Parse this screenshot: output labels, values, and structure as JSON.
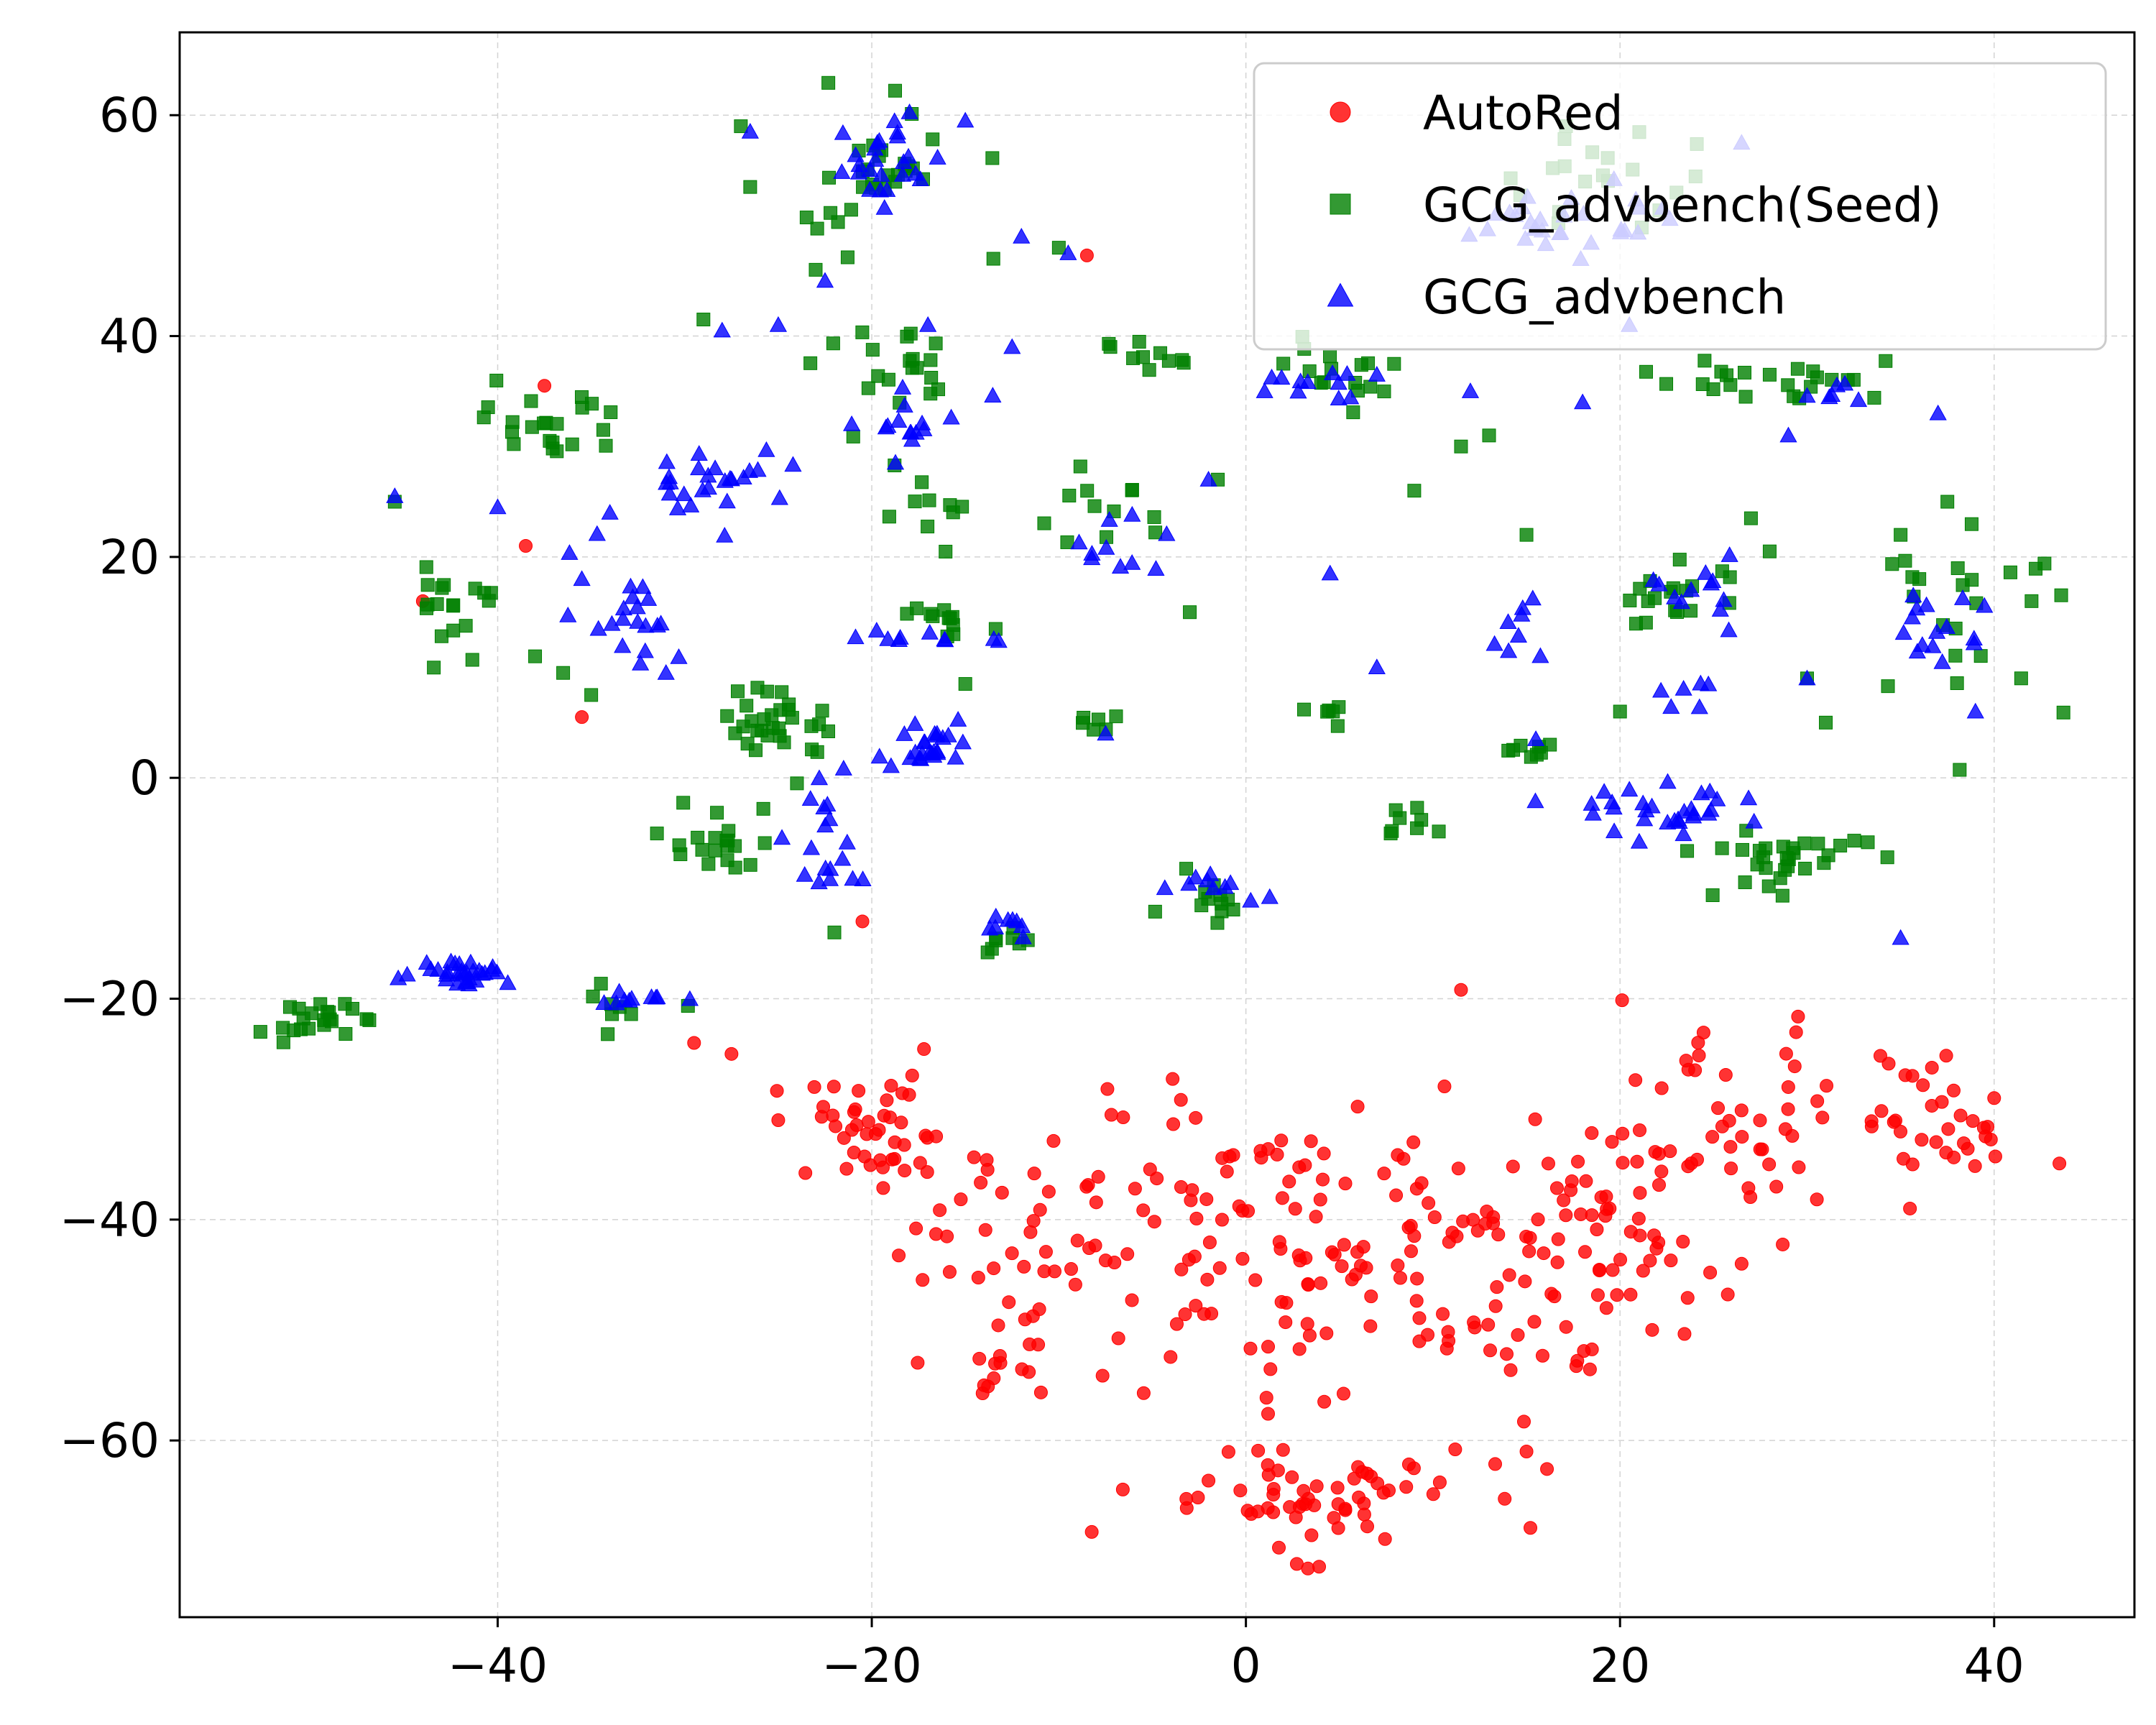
{
  "chart_data": {
    "type": "scatter",
    "title": "",
    "xlabel": "",
    "ylabel": "",
    "xlim": [
      -57,
      47.5
    ],
    "ylim": [
      -76,
      67.5
    ],
    "xticks": [
      -40,
      -20,
      0,
      20,
      40
    ],
    "yticks": [
      -60,
      -40,
      -20,
      0,
      20,
      40,
      60
    ],
    "grid": true,
    "legend_position": "upper-right",
    "series": [
      {
        "name": "AutoRed",
        "marker": "circle",
        "color": "#ff0000",
        "clusters": [
          {
            "cx": -20,
            "cy": -32,
            "sx": 2.8,
            "sy": 2.5,
            "n": 40
          },
          {
            "cx": -12,
            "cy": -43,
            "sx": 4,
            "sy": 6,
            "n": 45
          },
          {
            "cx": -3,
            "cy": -40,
            "sx": 4.5,
            "sy": 6,
            "n": 55
          },
          {
            "cx": 5,
            "cy": -42,
            "sx": 4,
            "sy": 7,
            "n": 55
          },
          {
            "cx": 13,
            "cy": -42,
            "sx": 3.5,
            "sy": 6,
            "n": 50
          },
          {
            "cx": 19,
            "cy": -44,
            "sx": 4,
            "sy": 6,
            "n": 55
          },
          {
            "cx": 25,
            "cy": -31,
            "sx": 4,
            "sy": 4,
            "n": 45
          },
          {
            "cx": 37,
            "cy": -31,
            "sx": 2.5,
            "sy": 3.5,
            "n": 35
          },
          {
            "cx": 3,
            "cy": -65,
            "sx": 4.5,
            "sy": 2.5,
            "n": 65
          },
          {
            "cx": -13,
            "cy": -54,
            "sx": 1.5,
            "sy": 1.5,
            "n": 10
          }
        ],
        "points": [
          {
            "x": -37.5,
            "y": 35.5
          },
          {
            "x": -38.5,
            "y": 21
          },
          {
            "x": -44,
            "y": 16
          },
          {
            "x": -35.5,
            "y": 5.5
          },
          {
            "x": -20.5,
            "y": -13
          },
          {
            "x": -8.5,
            "y": 47.3
          },
          {
            "x": 11.5,
            "y": -19.2
          },
          {
            "x": -29.5,
            "y": -24
          },
          {
            "x": -27.5,
            "y": -25
          },
          {
            "x": -25,
            "y": -31
          },
          {
            "x": 15,
            "y": -61
          },
          {
            "x": 35.5,
            "y": -39
          },
          {
            "x": 40,
            "y": -29
          },
          {
            "x": -14,
            "y": -55
          },
          {
            "x": 26.5,
            "y": -44
          }
        ]
      },
      {
        "name": "GCG_advbench(Seed)",
        "marker": "square",
        "color": "#008000",
        "clusters": [
          {
            "cx": -20,
            "cy": 55,
            "sx": 2.5,
            "sy": 3.5,
            "n": 30
          },
          {
            "cx": -50,
            "cy": -22,
            "sx": 1.2,
            "sy": 0.8,
            "n": 22
          },
          {
            "cx": -37,
            "cy": 32,
            "sx": 1.8,
            "sy": 1.8,
            "n": 22
          },
          {
            "cx": -42,
            "cy": 16,
            "sx": 1.2,
            "sy": 2,
            "n": 18
          },
          {
            "cx": -25,
            "cy": 5,
            "sx": 1.5,
            "sy": 1.5,
            "n": 30
          },
          {
            "cx": -28,
            "cy": -6,
            "sx": 1.5,
            "sy": 2.5,
            "n": 20
          },
          {
            "cx": -19,
            "cy": 36,
            "sx": 2,
            "sy": 2,
            "n": 20
          },
          {
            "cx": -17,
            "cy": 24,
            "sx": 1.2,
            "sy": 1.5,
            "n": 10
          },
          {
            "cx": -16,
            "cy": 14,
            "sx": 2,
            "sy": 1.2,
            "n": 12
          },
          {
            "cx": -8,
            "cy": 24,
            "sx": 1.5,
            "sy": 1.5,
            "n": 12
          },
          {
            "cx": -6,
            "cy": 38,
            "sx": 1.5,
            "sy": 0.8,
            "n": 10
          },
          {
            "cx": 5,
            "cy": 36,
            "sx": 2,
            "sy": 1.5,
            "n": 15
          },
          {
            "cx": 18,
            "cy": 55,
            "sx": 3,
            "sy": 2,
            "n": 20
          },
          {
            "cx": 23,
            "cy": 16,
            "sx": 1.8,
            "sy": 1.8,
            "n": 18
          },
          {
            "cx": 29,
            "cy": -7,
            "sx": 2.5,
            "sy": 1.5,
            "n": 30
          },
          {
            "cx": 39,
            "cy": 14,
            "sx": 2.5,
            "sy": 4,
            "n": 22
          },
          {
            "cx": 31,
            "cy": 36,
            "sx": 2,
            "sy": 1,
            "n": 12
          },
          {
            "cx": 25,
            "cy": 36,
            "sx": 1.5,
            "sy": 1,
            "n": 10
          },
          {
            "cx": -33,
            "cy": -21,
            "sx": 1.5,
            "sy": 1.2,
            "n": 8
          },
          {
            "cx": -13,
            "cy": -15,
            "sx": 1,
            "sy": 0.8,
            "n": 8
          },
          {
            "cx": -2,
            "cy": -10,
            "sx": 1.2,
            "sy": 1.2,
            "n": 12
          },
          {
            "cx": 9,
            "cy": -4,
            "sx": 1.2,
            "sy": 1,
            "n": 8
          },
          {
            "cx": 15,
            "cy": 2,
            "sx": 1,
            "sy": 1,
            "n": 8
          },
          {
            "cx": 5,
            "cy": 5.5,
            "sx": 1,
            "sy": 0.8,
            "n": 6
          },
          {
            "cx": -8,
            "cy": 5,
            "sx": 1,
            "sy": 0.8,
            "n": 6
          }
        ],
        "points": [
          {
            "x": -45.5,
            "y": 25
          },
          {
            "x": -38,
            "y": 11
          },
          {
            "x": -36.5,
            "y": 9.5
          },
          {
            "x": -35,
            "y": 7.5
          },
          {
            "x": -27,
            "y": 59
          },
          {
            "x": -26.5,
            "y": 53.5
          },
          {
            "x": -23,
            "y": 46
          },
          {
            "x": -29,
            "y": 41.5
          },
          {
            "x": -13.5,
            "y": 47
          },
          {
            "x": -10,
            "y": 48
          },
          {
            "x": -1.5,
            "y": 27
          },
          {
            "x": -3,
            "y": 15
          },
          {
            "x": 9,
            "y": 26
          },
          {
            "x": 13,
            "y": 31
          },
          {
            "x": 15,
            "y": 22
          },
          {
            "x": 28,
            "y": 20.5
          },
          {
            "x": 35,
            "y": 22
          },
          {
            "x": 37.5,
            "y": 25
          },
          {
            "x": 20,
            "y": 6
          },
          {
            "x": 30,
            "y": 9
          },
          {
            "x": 31,
            "y": 5
          },
          {
            "x": 27,
            "y": 23.5
          },
          {
            "x": 36,
            "y": 18
          },
          {
            "x": 42,
            "y": 16
          },
          {
            "x": -22,
            "y": -14
          },
          {
            "x": -24,
            "y": -0.5
          },
          {
            "x": -15,
            "y": 8.5
          },
          {
            "x": 2,
            "y": 37.5
          },
          {
            "x": 11.5,
            "y": 30
          },
          {
            "x": 28,
            "y": 36.5
          }
        ]
      },
      {
        "name": "GCG_advbench",
        "marker": "triangle",
        "color": "#0000ff",
        "clusters": [
          {
            "cx": -19,
            "cy": 56,
            "sx": 1.5,
            "sy": 2.5,
            "n": 25
          },
          {
            "cx": -42,
            "cy": -17.5,
            "sx": 1.3,
            "sy": 0.6,
            "n": 30
          },
          {
            "cx": -33,
            "cy": 15,
            "sx": 1.5,
            "sy": 2.5,
            "n": 20
          },
          {
            "cx": -28,
            "cy": 27,
            "sx": 1.8,
            "sy": 1.5,
            "n": 25
          },
          {
            "cx": -17,
            "cy": 3,
            "sx": 1.2,
            "sy": 1.3,
            "n": 25
          },
          {
            "cx": -22,
            "cy": -6,
            "sx": 1.5,
            "sy": 2.5,
            "n": 18
          },
          {
            "cx": -18,
            "cy": 32,
            "sx": 1.8,
            "sy": 1.5,
            "n": 15
          },
          {
            "cx": -16,
            "cy": 12.7,
            "sx": 1.8,
            "sy": 0.4,
            "n": 10
          },
          {
            "cx": -7,
            "cy": 21,
            "sx": 1.5,
            "sy": 1.8,
            "n": 10
          },
          {
            "cx": -2,
            "cy": -10,
            "sx": 1.5,
            "sy": 0.8,
            "n": 10
          },
          {
            "cx": 4,
            "cy": 35.5,
            "sx": 2,
            "sy": 0.8,
            "n": 10
          },
          {
            "cx": 15,
            "cy": 50,
            "sx": 2,
            "sy": 2,
            "n": 15
          },
          {
            "cx": 20,
            "cy": 50,
            "sx": 2,
            "sy": 2,
            "n": 15
          },
          {
            "cx": 23,
            "cy": -3,
            "sx": 2.5,
            "sy": 1,
            "n": 30
          },
          {
            "cx": 24,
            "cy": 17,
            "sx": 1,
            "sy": 1.5,
            "n": 12
          },
          {
            "cx": 37,
            "cy": 14,
            "sx": 1.5,
            "sy": 2,
            "n": 15
          },
          {
            "cx": 31.5,
            "cy": 35,
            "sx": 1,
            "sy": 0.5,
            "n": 6
          },
          {
            "cx": -33,
            "cy": -20,
            "sx": 1.2,
            "sy": 0.4,
            "n": 10
          },
          {
            "cx": -12.5,
            "cy": -13.5,
            "sx": 0.8,
            "sy": 0.5,
            "n": 8
          },
          {
            "cx": 14.5,
            "cy": 14,
            "sx": 0.8,
            "sy": 2.5,
            "n": 8
          },
          {
            "cx": 23.5,
            "cy": 8,
            "sx": 0.8,
            "sy": 0.8,
            "n": 6
          }
        ],
        "points": [
          {
            "x": -45.5,
            "y": 25.5
          },
          {
            "x": -26.5,
            "y": 58.5
          },
          {
            "x": -22.5,
            "y": 45
          },
          {
            "x": -17,
            "y": 41
          },
          {
            "x": -12.5,
            "y": 39
          },
          {
            "x": -28,
            "y": 40.5
          },
          {
            "x": -25,
            "y": 41
          },
          {
            "x": -40,
            "y": 24.5
          },
          {
            "x": -34,
            "y": 24
          },
          {
            "x": -35.5,
            "y": 18
          },
          {
            "x": -12,
            "y": 49
          },
          {
            "x": -9.5,
            "y": 47.5
          },
          {
            "x": -15,
            "y": 59.5
          },
          {
            "x": 1,
            "y": 35
          },
          {
            "x": 7,
            "y": 36.5
          },
          {
            "x": 20.5,
            "y": 41
          },
          {
            "x": 26.5,
            "y": 57.5
          },
          {
            "x": 18,
            "y": 34
          },
          {
            "x": 29,
            "y": 31
          },
          {
            "x": 37,
            "y": 33
          },
          {
            "x": 35,
            "y": -14.5
          },
          {
            "x": 39,
            "y": 6
          },
          {
            "x": 30,
            "y": 9
          },
          {
            "x": -2,
            "y": 27
          },
          {
            "x": -7.5,
            "y": 4
          },
          {
            "x": 4.5,
            "y": 18.5
          },
          {
            "x": 7,
            "y": 10
          },
          {
            "x": 12,
            "y": 35
          },
          {
            "x": -31,
            "y": 9.5
          },
          {
            "x": 15.5,
            "y": 3.5
          }
        ]
      }
    ]
  }
}
